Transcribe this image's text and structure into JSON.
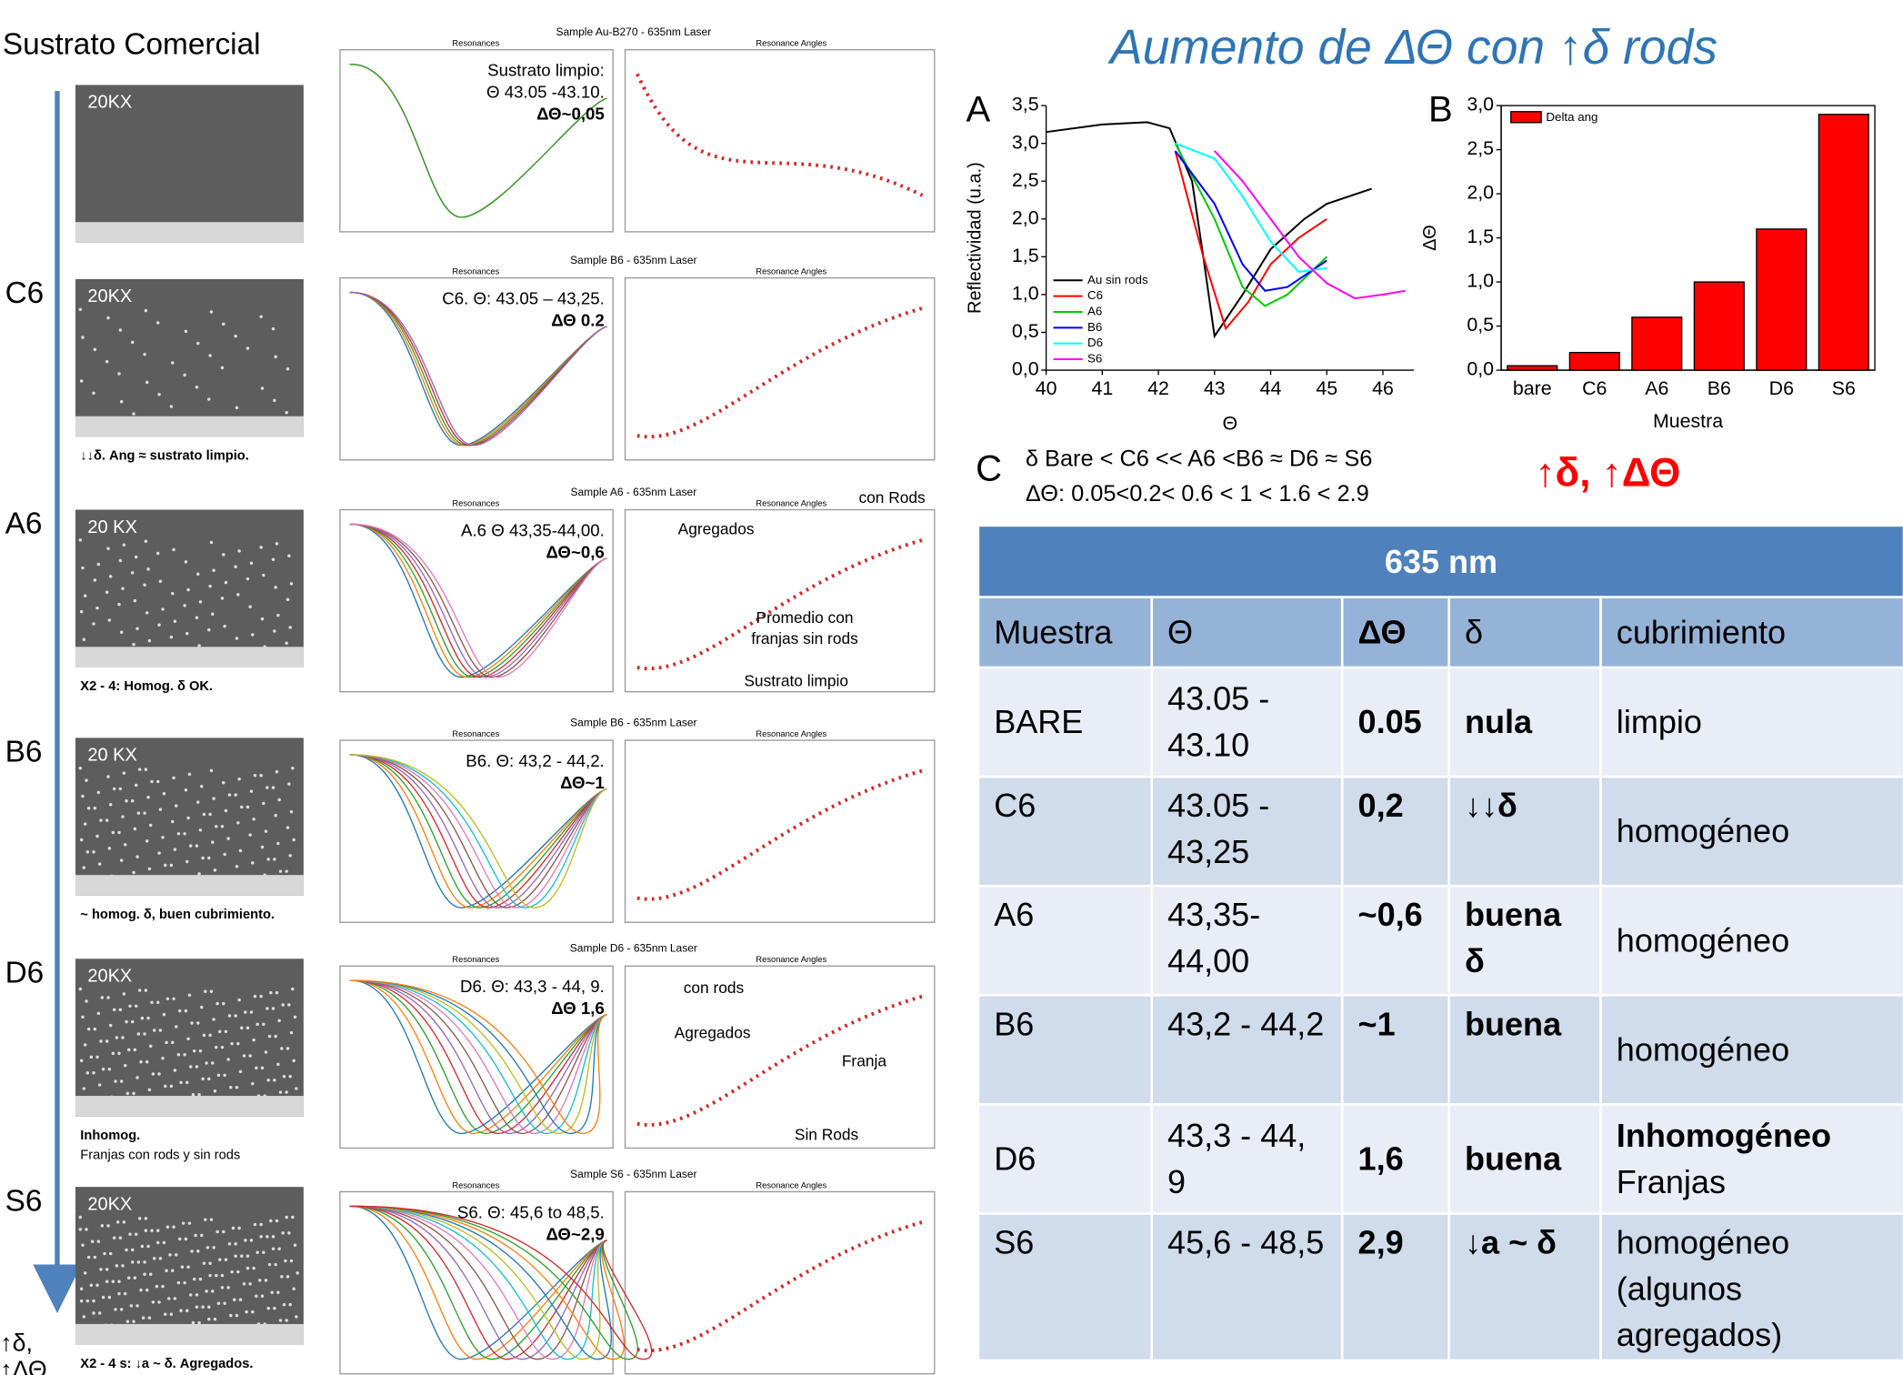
{
  "title": "Aumento de ΔΘ con ↑δ rods",
  "left": {
    "heading": "Sustrato Comercial",
    "footer": [
      "↑δ,",
      "↑ΔΘ"
    ],
    "samples": [
      {
        "sem": "20KX",
        "plot_title": "Sample Au-B270 - 635nm Laser",
        "res_title": "Resonances",
        "ang_title": "Resonance Angles",
        "note": [
          "Sustrato limpio:",
          "Θ 43.05 -43.10.",
          "ΔΘ~0,05"
        ]
      },
      {
        "label": "C6",
        "sem": "20KX",
        "caption": [
          "↓↓δ. Ang ≈ sustrato limpio."
        ],
        "plot_title": "Sample B6 - 635nm Laser",
        "res_title": "Resonances",
        "ang_title": "Resonance Angles",
        "note": [
          "C6. Θ: 43.05 – 43,25.",
          "ΔΘ 0.2"
        ]
      },
      {
        "label": "A6",
        "sem": "20 KX",
        "caption": [
          "X2 - 4: Homog. δ OK."
        ],
        "plot_title": "Sample A6 - 635nm Laser",
        "res_title": "Resonances",
        "ang_title": "Resonance Angles",
        "note": [
          "A.6 Θ 43,35-44,00.",
          "ΔΘ~0,6"
        ],
        "angle_notes": [
          "con Rods",
          "Agregados",
          "Promedio con",
          "franjas sin rods",
          "Sustrato limpio"
        ]
      },
      {
        "label": "B6",
        "sem": "20 KX",
        "caption": [
          "~ homog. δ, buen cubrimiento."
        ],
        "plot_title": "Sample B6 - 635nm Laser",
        "res_title": "Resonances",
        "ang_title": "Resonance Angles",
        "note": [
          "B6. Θ: 43,2 - 44,2.",
          "ΔΘ~1"
        ]
      },
      {
        "label": "D6",
        "sem": "20KX",
        "caption": [
          "Inhomog.",
          "Franjas con rods y sin rods"
        ],
        "plot_title": "Sample D6 - 635nm Laser",
        "res_title": "Resonances",
        "ang_title": "Resonance Angles",
        "note": [
          "D6. Θ: 43,3 - 44, 9.",
          "ΔΘ 1,6"
        ],
        "angle_notes": [
          "con rods",
          "Agregados",
          "Franja",
          "Sin Rods"
        ]
      },
      {
        "label": "S6",
        "sem": "20KX",
        "caption": [
          "X2 - 4 s: ↓a ~ δ. Agregados."
        ],
        "plot_title": "Sample S6 - 635nm Laser",
        "res_title": "Resonances",
        "ang_title": "Resonance Angles",
        "note": [
          "S6. Θ: 45,6 to 48,5.",
          "ΔΘ~2,9"
        ]
      }
    ]
  },
  "chart_data": [
    {
      "type": "line",
      "panel": "A",
      "x_label": "Θ",
      "y_label": "Reflectividad (u.a.)",
      "xlim": [
        40,
        46.55
      ],
      "ylim": [
        0,
        3.5
      ],
      "xticks": [
        40,
        41,
        42,
        43,
        44,
        45,
        46
      ],
      "yticks": [
        {
          "value": 0,
          "label": "0,0"
        },
        {
          "value": 0.5,
          "label": "0,5"
        },
        {
          "value": 1,
          "label": "1,0"
        },
        {
          "value": 1.5,
          "label": "1,5"
        },
        {
          "value": 2,
          "label": "2,0"
        },
        {
          "value": 2.5,
          "label": "2,5"
        },
        {
          "value": 3,
          "label": "3,0"
        },
        {
          "value": 3.5,
          "label": "3,5"
        }
      ],
      "series": [
        {
          "name": "Au sin rods",
          "color": "#000000",
          "x": [
            40,
            41,
            41.8,
            42.2,
            42.6,
            42.8,
            43,
            43.5,
            44,
            44.6,
            45,
            45.6,
            45.8
          ],
          "values": [
            3.15,
            3.25,
            3.28,
            3.2,
            2.5,
            1.5,
            0.45,
            1.0,
            1.6,
            2.0,
            2.2,
            2.35,
            2.4
          ]
        },
        {
          "name": "C6",
          "color": "#ff0000",
          "x": [
            42.3,
            42.8,
            43.2,
            43.6,
            44,
            44.5,
            45
          ],
          "values": [
            2.9,
            1.5,
            0.55,
            0.9,
            1.4,
            1.75,
            2.0
          ]
        },
        {
          "name": "A6",
          "color": "#00cc00",
          "x": [
            42.3,
            43,
            43.5,
            43.9,
            44.3,
            45
          ],
          "values": [
            3.0,
            2.0,
            1.1,
            0.85,
            1.0,
            1.5
          ]
        },
        {
          "name": "B6",
          "color": "#0000ff",
          "x": [
            42.3,
            43,
            43.5,
            43.9,
            44.3,
            45
          ],
          "values": [
            2.9,
            2.2,
            1.4,
            1.05,
            1.1,
            1.45
          ]
        },
        {
          "name": "D6",
          "color": "#00ffff",
          "x": [
            42.3,
            43,
            43.5,
            44,
            44.5,
            45
          ],
          "values": [
            3.0,
            2.8,
            2.3,
            1.7,
            1.3,
            1.35
          ]
        },
        {
          "name": "S6",
          "color": "#ff00ff",
          "x": [
            43,
            43.5,
            44,
            44.5,
            45,
            45.5,
            46,
            46.4
          ],
          "values": [
            2.9,
            2.5,
            2.0,
            1.5,
            1.15,
            0.95,
            1.0,
            1.05
          ]
        }
      ]
    },
    {
      "type": "bar",
      "panel": "B",
      "x_label": "Muestra",
      "y_label": "ΔΘ",
      "legend": "Delta ang",
      "color": "#ff0000",
      "ylim": [
        0,
        3
      ],
      "yticks": [
        {
          "value": 0,
          "label": "0,0"
        },
        {
          "value": 0.5,
          "label": "0,5"
        },
        {
          "value": 1,
          "label": "1,0"
        },
        {
          "value": 1.5,
          "label": "1,5"
        },
        {
          "value": 2,
          "label": "2,0"
        },
        {
          "value": 2.5,
          "label": "2,5"
        },
        {
          "value": 3,
          "label": "3,0"
        }
      ],
      "categories": [
        "bare",
        "C6",
        "A6",
        "B6",
        "D6",
        "S6"
      ],
      "values": [
        0.05,
        0.2,
        0.6,
        1,
        1.6,
        2.9
      ]
    }
  ],
  "panel_c": {
    "letter": "C",
    "lines": [
      "δ  Bare < C6 << A6 <B6 ≈ D6 ≈ S6",
      "ΔΘ: 0.05<0.2< 0.6 < 1 < 1.6 < 2.9"
    ],
    "highlight": "↑δ, ↑ΔΘ"
  },
  "table": {
    "title": "635 nm",
    "header": [
      "Muestra",
      "Θ",
      "ΔΘ",
      "δ",
      "cubrimiento"
    ],
    "rows": [
      [
        "BARE",
        "43.05 - 43.10",
        "0.05",
        "nula",
        "limpio"
      ],
      [
        "C6",
        "43.05 - 43,25",
        "0,2",
        "↓↓δ",
        "homogéneo"
      ],
      [
        "A6",
        "43,35- 44,00",
        "~0,6",
        "buena δ",
        "homogéneo"
      ],
      [
        "B6",
        "43,2 - 44,2",
        "~1",
        "buena",
        "homogéneo"
      ],
      [
        "D6",
        "43,3 - 44, 9",
        "1,6",
        "buena",
        [
          "Inhomogéneo",
          "Franjas"
        ]
      ],
      [
        "S6",
        "45,6 - 48,5",
        "2,9",
        "↓a ~ δ",
        "homogéneo (algunos agregados)"
      ]
    ]
  }
}
